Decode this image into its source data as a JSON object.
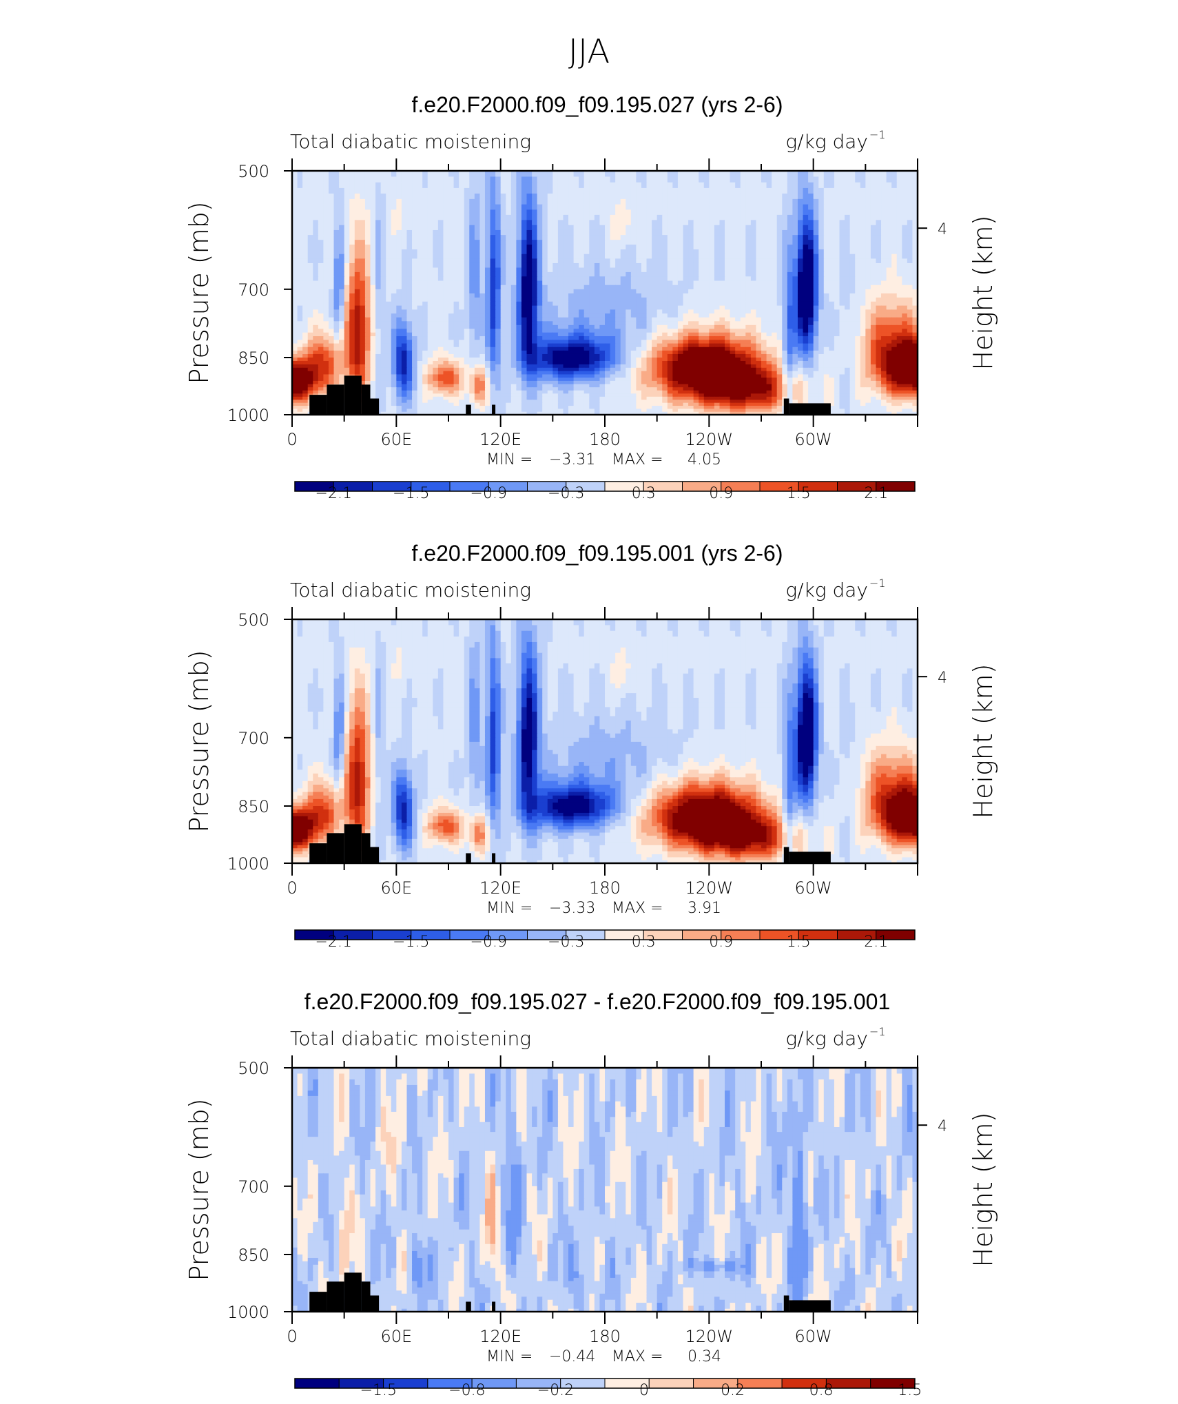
{
  "page_title": "JJA",
  "colors": {
    "blue_to_red": [
      "#00007f",
      "#0b1ea8",
      "#1a3fd0",
      "#2e5ee8",
      "#4a7af4",
      "#6f98f6",
      "#98b5f7",
      "#bfd2f9",
      "#dde8fb",
      "#feeee2",
      "#fcd2ba",
      "#f9ab87",
      "#f57f55",
      "#ed5326",
      "#d1300f",
      "#ab1808",
      "#800000"
    ],
    "land": "#000000"
  },
  "chart_data": [
    {
      "type": "heatmap",
      "title": "f.e20.F2000.f09_f09.195.027 (yrs 2-6)",
      "subtitle_left": "Total diabatic moistening",
      "units": "g/kg day",
      "units_exp": "−1",
      "ylabel": "Pressure (mb)",
      "ylabel_right": "Height (km)",
      "yticks": [
        "500",
        "700",
        "850",
        "1000"
      ],
      "ytick_values": [
        500,
        700,
        850,
        1000
      ],
      "yticks_right": [
        "4"
      ],
      "xticks": [
        "0",
        "60E",
        "120E",
        "180",
        "120W",
        "60W"
      ],
      "xtick_values": [
        0,
        60,
        120,
        180,
        240,
        300
      ],
      "xlim": [
        0,
        360
      ],
      "ylim": [
        1000,
        500
      ],
      "min_label": "MIN =",
      "min_value": "−3.31",
      "max_label": "MAX =",
      "max_value": "4.05",
      "colorbar_labels": [
        "−2.1",
        "−1.5",
        "−0.9",
        "−0.3",
        "0.3",
        "0.9",
        "1.5",
        "2.1"
      ],
      "field_scale": 1.0
    },
    {
      "type": "heatmap",
      "title": "f.e20.F2000.f09_f09.195.001 (yrs 2-6)",
      "subtitle_left": "Total diabatic moistening",
      "units": "g/kg day",
      "units_exp": "−1",
      "ylabel": "Pressure (mb)",
      "ylabel_right": "Height (km)",
      "yticks": [
        "500",
        "700",
        "850",
        "1000"
      ],
      "ytick_values": [
        500,
        700,
        850,
        1000
      ],
      "yticks_right": [
        "4"
      ],
      "xticks": [
        "0",
        "60E",
        "120E",
        "180",
        "120W",
        "60W"
      ],
      "xtick_values": [
        0,
        60,
        120,
        180,
        240,
        300
      ],
      "xlim": [
        0,
        360
      ],
      "ylim": [
        1000,
        500
      ],
      "min_label": "MIN =",
      "min_value": "−3.33",
      "max_label": "MAX =",
      "max_value": "3.91",
      "colorbar_labels": [
        "−2.1",
        "−1.5",
        "−0.9",
        "−0.3",
        "0.3",
        "0.9",
        "1.5",
        "2.1"
      ],
      "field_scale": 0.97
    },
    {
      "type": "heatmap",
      "title": "f.e20.F2000.f09_f09.195.027 - f.e20.F2000.f09_f09.195.001",
      "subtitle_left": "Total diabatic moistening",
      "units": "g/kg day",
      "units_exp": "−1",
      "ylabel": "Pressure (mb)",
      "ylabel_right": "Height (km)",
      "yticks": [
        "500",
        "700",
        "850",
        "1000"
      ],
      "ytick_values": [
        500,
        700,
        850,
        1000
      ],
      "yticks_right": [
        "4"
      ],
      "xticks": [
        "0",
        "60E",
        "120E",
        "180",
        "120W",
        "60W"
      ],
      "xtick_values": [
        0,
        60,
        120,
        180,
        240,
        300
      ],
      "xlim": [
        0,
        360
      ],
      "ylim": [
        1000,
        500
      ],
      "min_label": "MIN =",
      "min_value": "−0.44",
      "max_label": "MAX =",
      "max_value": "0.34",
      "colorbar_labels": [
        "−1.5",
        "−0.8",
        "−0.2",
        "0",
        "0.2",
        "0.8",
        "1.5"
      ],
      "field_scale": "difference"
    }
  ]
}
